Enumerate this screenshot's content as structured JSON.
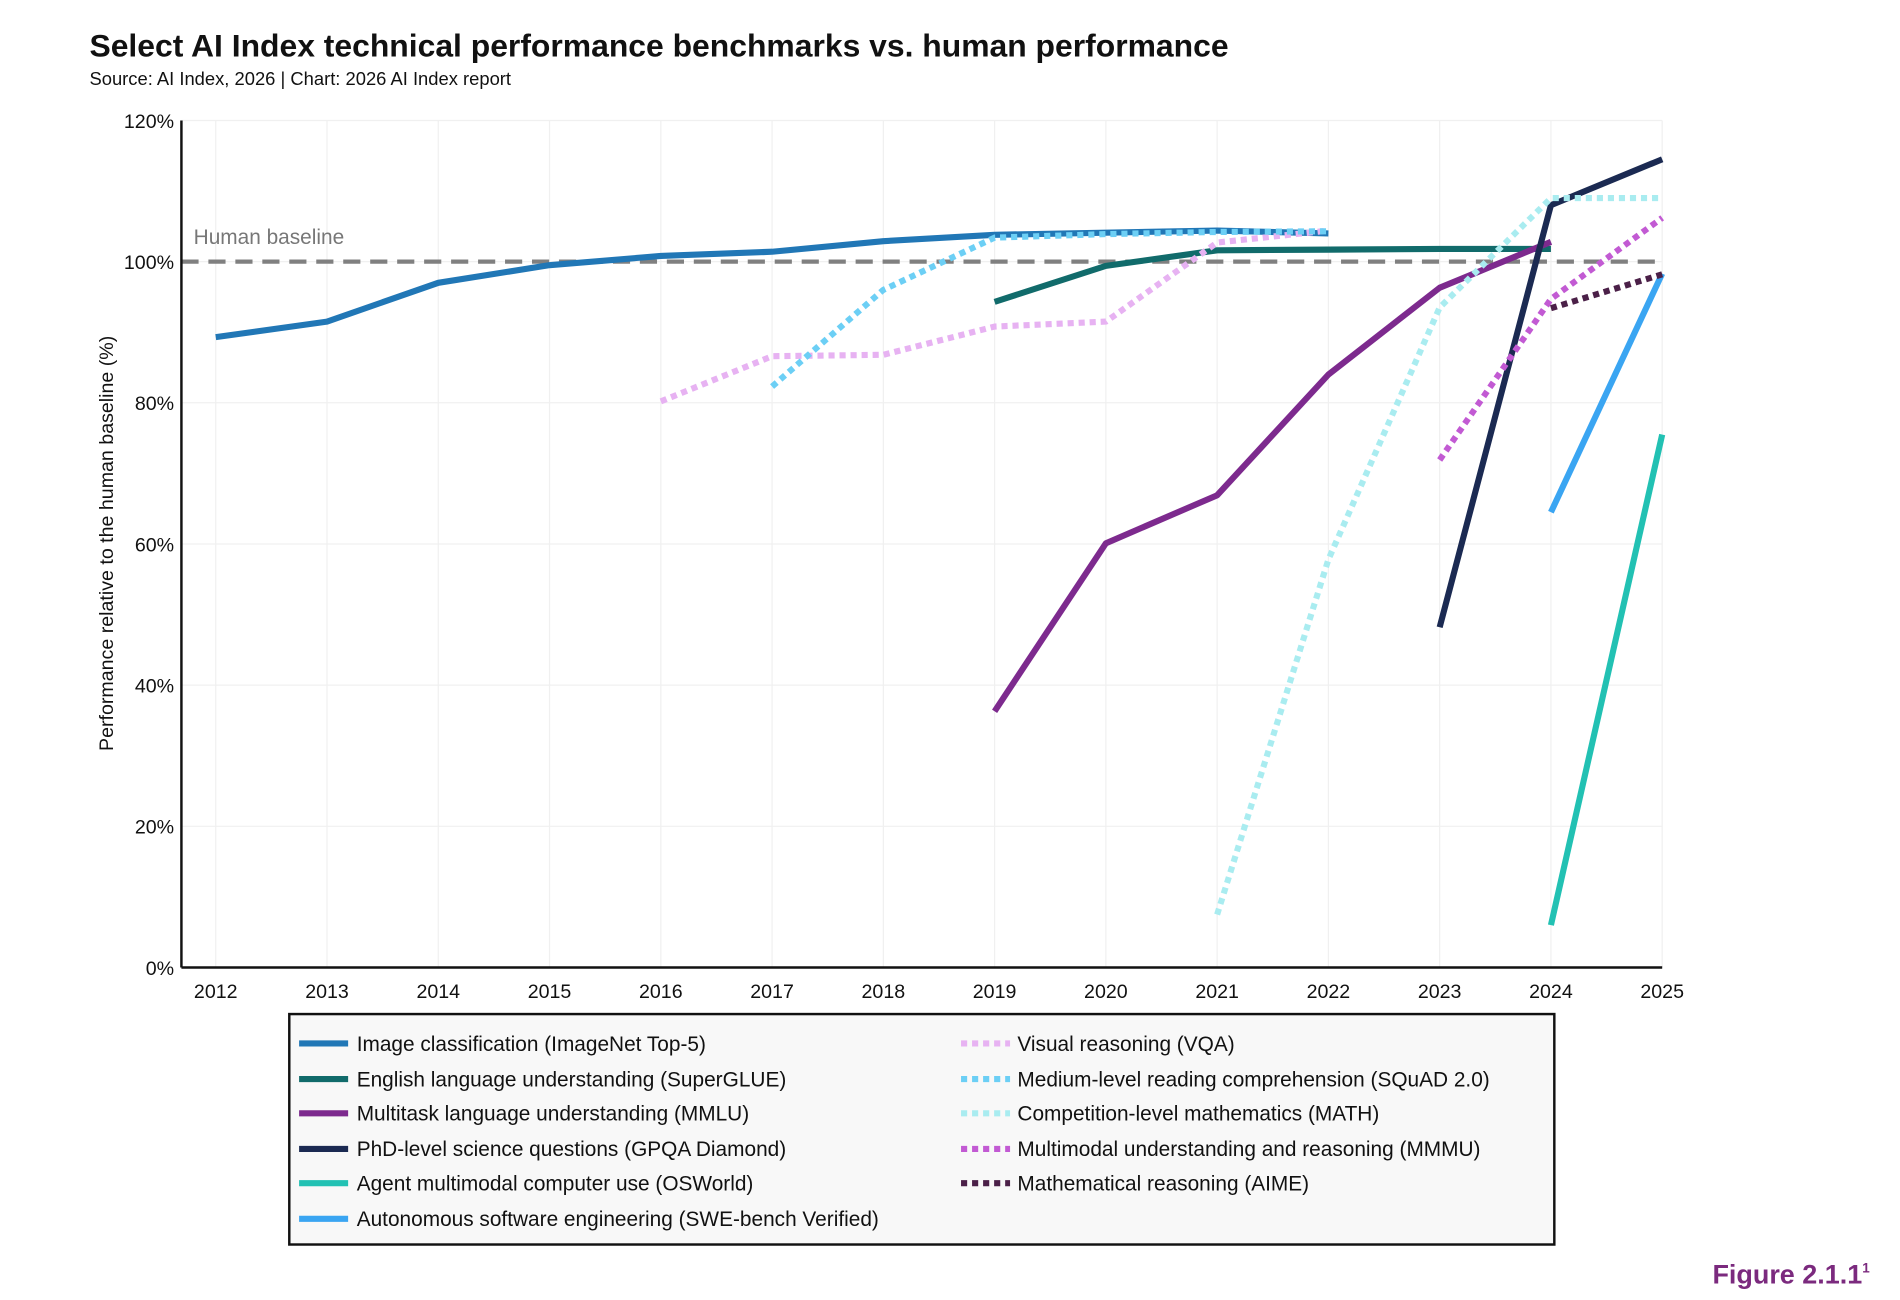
{
  "header": {
    "title": "Select AI Index technical performance benchmarks vs. human performance",
    "subtitle": "Source: AI Index, 2026 | Chart: 2026 AI Index report"
  },
  "figure_label": "Figure 2.1.1",
  "figure_footnote": "1",
  "chart_data": {
    "type": "line",
    "title": "Select AI Index technical performance benchmarks vs. human performance",
    "xlabel": "",
    "ylabel": "Performance relative to the human baseline (%)",
    "x_ticks": [
      "2012",
      "2013",
      "2014",
      "2015",
      "2016",
      "2017",
      "2018",
      "2019",
      "2020",
      "2021",
      "2022",
      "2023",
      "2024",
      "2025"
    ],
    "y_ticks": [
      "0%",
      "20%",
      "40%",
      "60%",
      "80%",
      "100%",
      "120%"
    ],
    "xlim": [
      2012,
      2025
    ],
    "ylim": [
      0,
      120
    ],
    "grid": "vertical and horizontal, light",
    "legend_placement": "bottom",
    "reference_line": {
      "label": "Human baseline",
      "value": 100,
      "color": "#808080",
      "style": "dashed"
    },
    "series": [
      {
        "name": "Image classification (ImageNet Top-5)",
        "color": "#2177b6",
        "style": "solid",
        "x": [
          2012,
          2013,
          2014,
          2015,
          2016,
          2017,
          2018,
          2019,
          2020,
          2021,
          2022
        ],
        "y": [
          89.3,
          91.5,
          97.0,
          99.5,
          100.8,
          101.4,
          102.9,
          103.8,
          104.1,
          104.4,
          104.0
        ]
      },
      {
        "name": "English language understanding (SuperGLUE)",
        "color": "#116b6b",
        "style": "solid",
        "x": [
          2019,
          2020,
          2021,
          2022,
          2023,
          2024
        ],
        "y": [
          94.3,
          99.4,
          101.6,
          101.7,
          101.8,
          101.8
        ]
      },
      {
        "name": "Multitask language understanding (MMLU)",
        "color": "#7d2a8e",
        "style": "solid",
        "x": [
          2019,
          2020,
          2021,
          2022,
          2023,
          2024
        ],
        "y": [
          36.3,
          60.1,
          66.9,
          84.0,
          96.3,
          102.8
        ]
      },
      {
        "name": "PhD-level science questions (GPQA Diamond)",
        "color": "#1b2a52",
        "style": "solid",
        "x": [
          2023,
          2024,
          2025
        ],
        "y": [
          48.2,
          108.0,
          114.5
        ]
      },
      {
        "name": "Agent multimodal computer use (OSWorld)",
        "color": "#22c1b3",
        "style": "solid",
        "x": [
          2024,
          2025
        ],
        "y": [
          6.0,
          75.5
        ]
      },
      {
        "name": "Autonomous software engineering (SWE-bench Verified)",
        "color": "#3aa5f2",
        "style": "solid",
        "x": [
          2024,
          2025
        ],
        "y": [
          64.5,
          98.3
        ]
      },
      {
        "name": "Visual reasoning (VQA)",
        "color": "#e7b2f2",
        "style": "dotted",
        "x": [
          2016,
          2017,
          2018,
          2019,
          2020,
          2021,
          2022
        ],
        "y": [
          80.2,
          86.6,
          86.8,
          90.8,
          91.5,
          102.7,
          104.4
        ]
      },
      {
        "name": "Medium-level reading comprehension (SQuAD 2.0)",
        "color": "#6ccff5",
        "style": "dotted",
        "x": [
          2017,
          2018,
          2019,
          2020,
          2021,
          2022
        ],
        "y": [
          82.3,
          96.0,
          103.4,
          103.9,
          104.2,
          104.3
        ]
      },
      {
        "name": "Competition-level mathematics (MATH)",
        "color": "#a9ecf0",
        "style": "dotted",
        "x": [
          2021,
          2022,
          2023,
          2024,
          2025
        ],
        "y": [
          7.5,
          57.8,
          93.5,
          109.0,
          109.0
        ]
      },
      {
        "name": "Multimodal understanding and reasoning (MMMU)",
        "color": "#c25ad3",
        "style": "dotted",
        "x": [
          2023,
          2024,
          2025
        ],
        "y": [
          71.9,
          94.7,
          106.2
        ]
      },
      {
        "name": "Mathematical reasoning (AIME)",
        "color": "#4b2048",
        "style": "dotted",
        "x": [
          2024,
          2025
        ],
        "y": [
          93.4,
          98.2
        ]
      }
    ]
  }
}
